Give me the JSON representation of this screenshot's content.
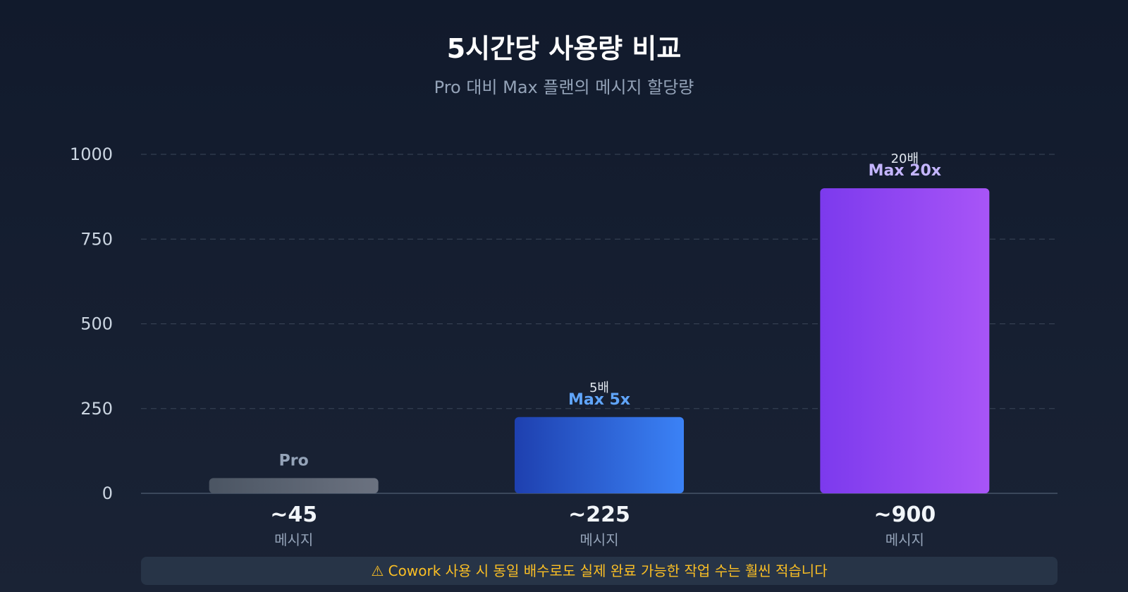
{
  "chart_data": {
    "type": "bar",
    "title": "5시간당 사용량 비교",
    "subtitle": "Pro 대비 Max 플랜의 메시지 할당량",
    "categories": [
      "Pro",
      "Max 5x",
      "Max 20x"
    ],
    "values": [
      45,
      225,
      900
    ],
    "value_labels": [
      "~45",
      "~225",
      "~900"
    ],
    "unit_label": "메시지",
    "multipliers": [
      "",
      "5배",
      "20배"
    ],
    "yticks": [
      0,
      250,
      500,
      750,
      1000
    ],
    "ylim": [
      0,
      1000
    ],
    "grid": true,
    "colors": [
      [
        "#4b5563",
        "#6b7280"
      ],
      [
        "#1e40af",
        "#3b82f6"
      ],
      [
        "#7c3aed",
        "#a855f7"
      ]
    ],
    "label_colors": [
      "#94a3b8",
      "#60a5fa",
      "#c4b5fd"
    ]
  },
  "note": "⚠ Cowork 사용 시 동일 배수로도 실제 완료 가능한 작업 수는 훨씬 적습니다"
}
